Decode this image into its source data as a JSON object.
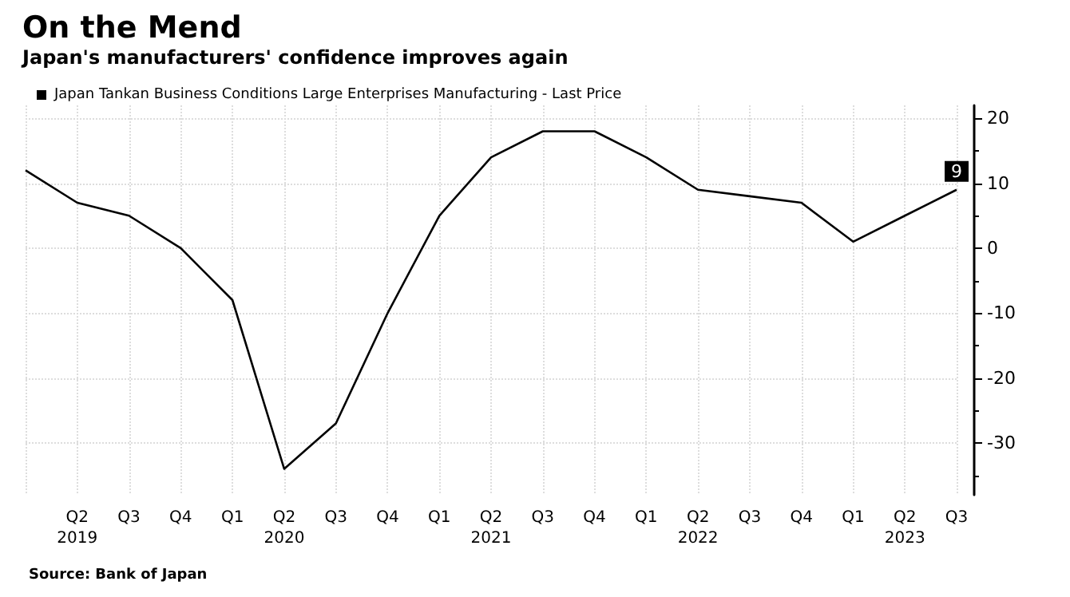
{
  "chart_data": {
    "type": "line",
    "title": "On the Mend",
    "subtitle": "Japan's manufacturers' confidence improves again",
    "categories": [
      null,
      "Q2\n2019",
      "Q3",
      "Q4",
      "Q1",
      "Q2\n2020",
      "Q3",
      "Q4",
      "Q1",
      "Q2\n2021",
      "Q3",
      "Q4",
      "Q1",
      "Q2\n2022",
      "Q3",
      "Q4",
      "Q1",
      "Q2\n2023",
      "Q3"
    ],
    "series": [
      {
        "name": "Japan Tankan Business Conditions Large Enterprises Manufacturing - Last Price",
        "color": "#000000",
        "values": [
          12,
          7,
          5,
          0,
          -8,
          -34,
          -27,
          -10,
          5,
          14,
          18,
          18,
          14,
          9,
          8,
          7,
          1,
          5,
          9
        ],
        "value_labels": [
          null,
          null,
          null,
          null,
          null,
          null,
          null,
          null,
          null,
          null,
          null,
          null,
          null,
          null,
          null,
          null,
          null,
          null,
          "9"
        ]
      }
    ],
    "ylim": [
      -38,
      22
    ],
    "yticks": [
      -30,
      -20,
      -10,
      0,
      10,
      20
    ],
    "grid": true,
    "legend": "top left",
    "marker": "none",
    "annotations": [
      "Source: Bank of Japan"
    ]
  }
}
